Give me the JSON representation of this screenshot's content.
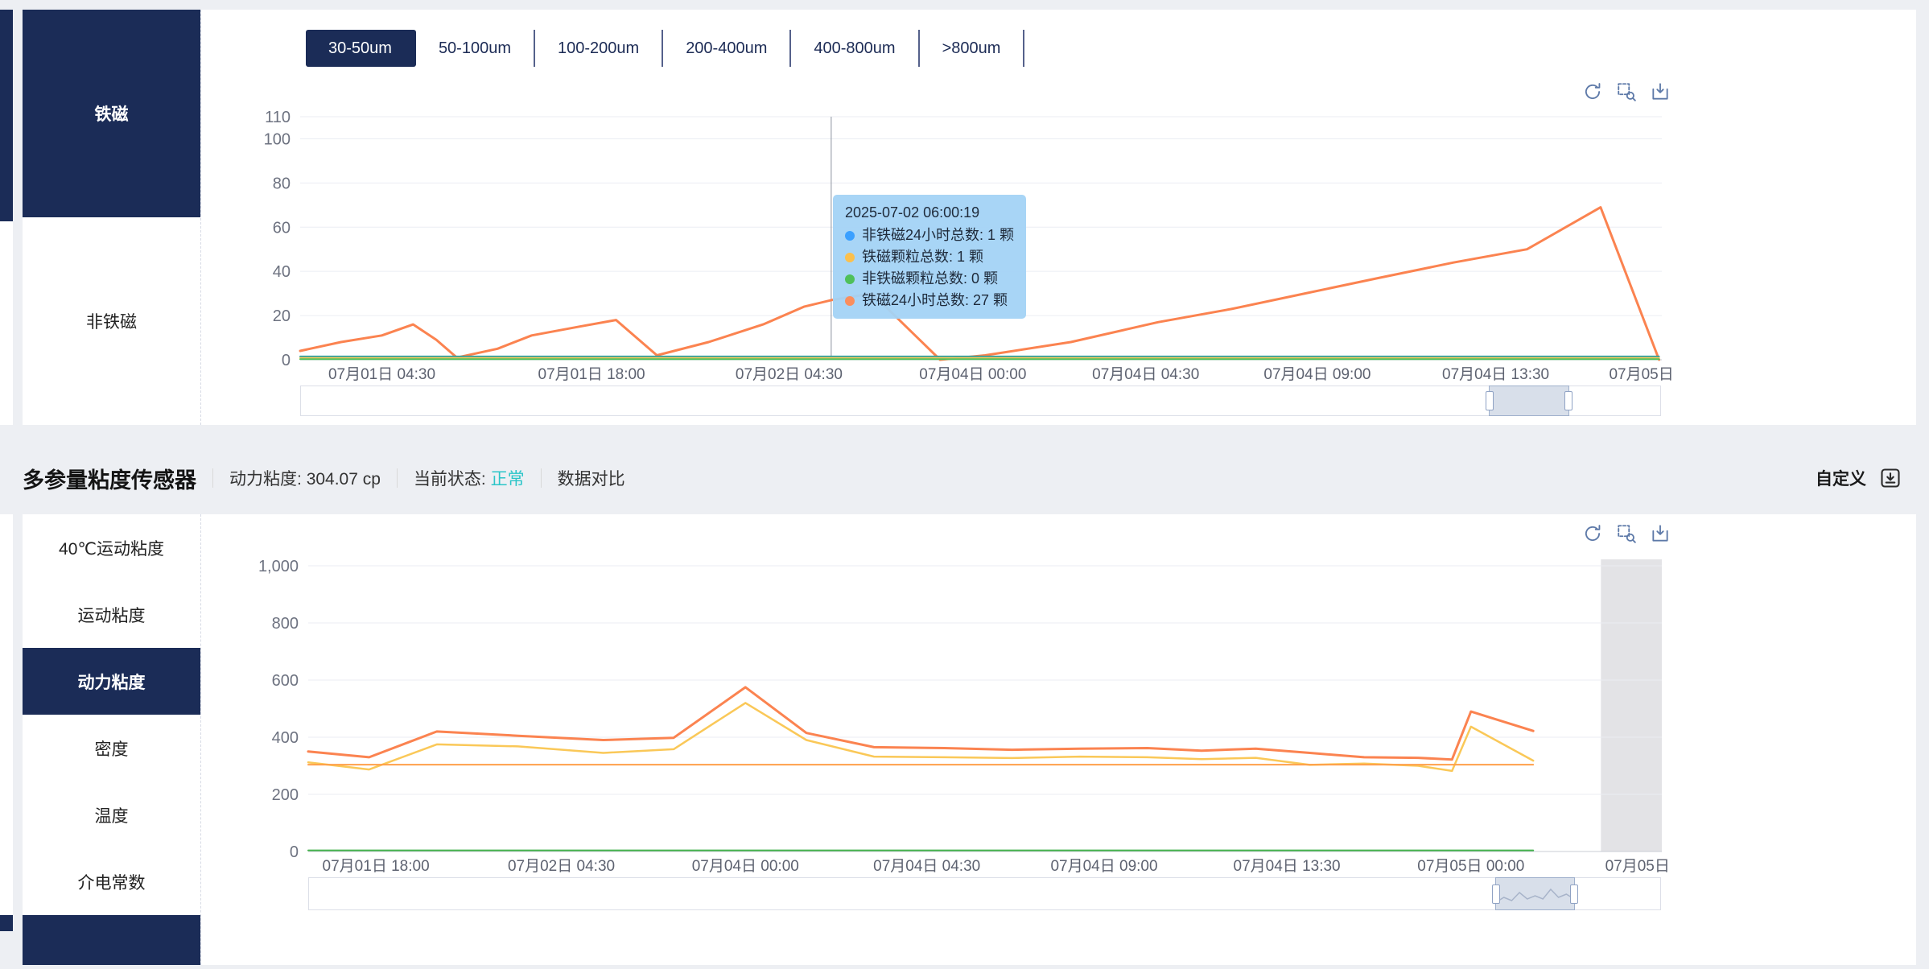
{
  "page": {
    "background": "#edeff3",
    "navy": "#1b2c57"
  },
  "top_panel": {
    "sidebar": {
      "items": [
        {
          "label": "铁磁",
          "selected": true
        },
        {
          "label": "非铁磁",
          "selected": false
        }
      ]
    },
    "tabs": [
      "30-50um",
      "50-100um",
      "100-200um",
      "200-400um",
      "400-800um",
      ">800um"
    ],
    "selected_tab": "30-50um",
    "toolbox": [
      "restore-icon",
      "zoom-select-icon",
      "save-image-icon"
    ],
    "tooltip": {
      "title": "2025-07-02 06:00:19",
      "items": [
        {
          "color": "#3ba0ff",
          "text": "非铁磁24小时总数: 1 颗"
        },
        {
          "color": "#fbc04d",
          "text": "铁磁颗粒总数: 1 颗"
        },
        {
          "color": "#4fc05a",
          "text": "非铁磁颗粒总数: 0 颗"
        },
        {
          "color": "#fa8e5d",
          "text": "铁磁24小时总数: 27 颗"
        }
      ]
    }
  },
  "section_header": {
    "title": "多参量粘度传感器",
    "metric_label": "动力粘度:",
    "metric_value": "304.07 cp",
    "status_label": "当前状态:",
    "status_value": "正常",
    "status_color": "#2bc5c8",
    "compare_label": "数据对比",
    "custom_label": "自定义"
  },
  "bottom_panel": {
    "sidebar": {
      "items": [
        "40℃运动粘度",
        "运动粘度",
        "动力粘度",
        "密度",
        "温度",
        "介电常数"
      ],
      "selected": "动力粘度"
    },
    "toolbox": [
      "restore-icon",
      "zoom-select-icon",
      "save-image-icon"
    ]
  },
  "chart_data": [
    {
      "type": "line",
      "context": "铁磁 30-50um 颗粒趋势",
      "y_max": 110,
      "y_ticks": [
        {
          "v": 0,
          "label": "0"
        },
        {
          "v": 20,
          "label": "20"
        },
        {
          "v": 40,
          "label": "40"
        },
        {
          "v": 60,
          "label": "60"
        },
        {
          "v": 80,
          "label": "80"
        },
        {
          "v": 100,
          "label": "100"
        },
        {
          "v": 110,
          "label": "110"
        }
      ],
      "x_ticks": [
        {
          "f": 0.06,
          "label": "07月01日 04:30"
        },
        {
          "f": 0.214,
          "label": "07月01日 18:00"
        },
        {
          "f": 0.359,
          "label": "07月02日 04:30"
        },
        {
          "f": 0.494,
          "label": "07月04日 00:00"
        },
        {
          "f": 0.621,
          "label": "07月04日 04:30"
        },
        {
          "f": 0.747,
          "label": "07月04日 09:00"
        },
        {
          "f": 0.878,
          "label": "07月04日 13:30"
        },
        {
          "f": 0.985,
          "label": "07月05日"
        }
      ],
      "series": [
        {
          "name": "铁磁24小时总数",
          "color": "#fb8350",
          "width": 3,
          "points": [
            [
              0,
              4
            ],
            [
              0.03,
              8
            ],
            [
              0.06,
              11
            ],
            [
              0.083,
              16
            ],
            [
              0.1,
              9
            ],
            [
              0.115,
              1
            ],
            [
              0.145,
              5
            ],
            [
              0.17,
              11
            ],
            [
              0.205,
              15
            ],
            [
              0.232,
              18
            ],
            [
              0.262,
              2
            ],
            [
              0.3,
              8
            ],
            [
              0.34,
              16
            ],
            [
              0.37,
              24
            ],
            [
              0.39,
              27
            ],
            [
              0.42,
              30
            ],
            [
              0.47,
              0
            ],
            [
              0.503,
              2
            ],
            [
              0.566,
              8
            ],
            [
              0.63,
              17
            ],
            [
              0.684,
              23
            ],
            [
              0.738,
              30
            ],
            [
              0.792,
              37
            ],
            [
              0.847,
              44
            ],
            [
              0.901,
              50
            ],
            [
              0.955,
              69
            ],
            [
              0.998,
              0
            ]
          ]
        },
        {
          "name": "非铁磁24小时总数",
          "color": "#2f9e9b",
          "width": 2,
          "points": [
            [
              0,
              1.5
            ],
            [
              0.998,
              1.5
            ]
          ]
        },
        {
          "name": "铁磁颗粒总数",
          "color": "#fac858",
          "width": 2,
          "points": [
            [
              0,
              0.8
            ],
            [
              0.998,
              0.8
            ]
          ]
        },
        {
          "name": "非铁磁颗粒总数",
          "color": "#4fc05a",
          "width": 2,
          "points": [
            [
              0,
              0.3
            ],
            [
              0.998,
              0.3
            ]
          ]
        }
      ],
      "crosshair_f": 0.39,
      "datazoom": {
        "start": 0.874,
        "end": 0.933
      }
    },
    {
      "type": "line",
      "context": "多参量粘度传感器 动力粘度趋势",
      "y_max": 1000,
      "y_ticks": [
        {
          "v": 0,
          "label": "0"
        },
        {
          "v": 200,
          "label": "200"
        },
        {
          "v": 400,
          "label": "400"
        },
        {
          "v": 600,
          "label": "600"
        },
        {
          "v": 800,
          "label": "800"
        },
        {
          "v": 1000,
          "label": "1,000"
        }
      ],
      "x_ticks": [
        {
          "f": 0.05,
          "label": "07月01日 18:00"
        },
        {
          "f": 0.187,
          "label": "07月02日 04:30"
        },
        {
          "f": 0.323,
          "label": "07月04日 00:00"
        },
        {
          "f": 0.457,
          "label": "07月04日 04:30"
        },
        {
          "f": 0.588,
          "label": "07月04日 09:00"
        },
        {
          "f": 0.723,
          "label": "07月04日 13:30"
        },
        {
          "f": 0.859,
          "label": "07月05日 00:00"
        },
        {
          "f": 0.982,
          "label": "07月05日"
        }
      ],
      "series": [
        {
          "color": "#fb8350",
          "width": 3,
          "points": [
            [
              0,
              350
            ],
            [
              0.045,
              330
            ],
            [
              0.095,
              420
            ],
            [
              0.155,
              405
            ],
            [
              0.218,
              390
            ],
            [
              0.27,
              398
            ],
            [
              0.323,
              575
            ],
            [
              0.368,
              415
            ],
            [
              0.418,
              365
            ],
            [
              0.47,
              362
            ],
            [
              0.52,
              356
            ],
            [
              0.57,
              360
            ],
            [
              0.62,
              362
            ],
            [
              0.66,
              353
            ],
            [
              0.7,
              360
            ],
            [
              0.74,
              345
            ],
            [
              0.78,
              330
            ],
            [
              0.82,
              328
            ],
            [
              0.845,
              322
            ],
            [
              0.859,
              490
            ],
            [
              0.905,
              422
            ]
          ]
        },
        {
          "color": "#fac858",
          "width": 2.5,
          "points": [
            [
              0,
              312
            ],
            [
              0.045,
              287
            ],
            [
              0.095,
              375
            ],
            [
              0.155,
              368
            ],
            [
              0.218,
              345
            ],
            [
              0.27,
              358
            ],
            [
              0.323,
              520
            ],
            [
              0.368,
              390
            ],
            [
              0.418,
              332
            ],
            [
              0.47,
              330
            ],
            [
              0.52,
              327
            ],
            [
              0.57,
              332
            ],
            [
              0.62,
              330
            ],
            [
              0.66,
              323
            ],
            [
              0.7,
              328
            ],
            [
              0.74,
              303
            ],
            [
              0.78,
              308
            ],
            [
              0.82,
              300
            ],
            [
              0.845,
              282
            ],
            [
              0.859,
              437
            ],
            [
              0.905,
              318
            ]
          ]
        },
        {
          "color": "#ffa04a",
          "width": 2,
          "points": [
            [
              0,
              304
            ],
            [
              0.905,
              304
            ]
          ]
        },
        {
          "color": "#43b24b",
          "width": 2,
          "points": [
            [
              0,
              4
            ],
            [
              0.905,
              4
            ]
          ]
        }
      ],
      "gray_region": {
        "from": 0.955,
        "to": 1.0
      },
      "datazoom": {
        "start": 0.878,
        "end": 0.937
      }
    }
  ]
}
